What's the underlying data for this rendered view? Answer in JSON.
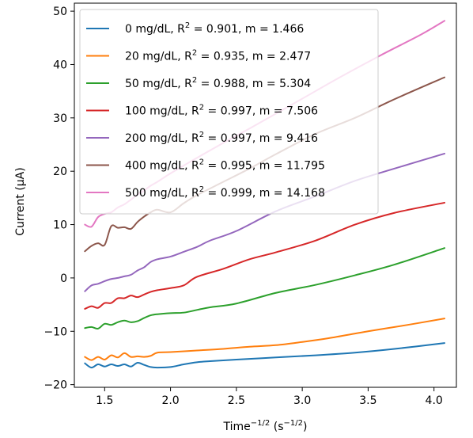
{
  "chart_data": {
    "type": "line",
    "xlabel": {
      "base": "Time",
      "base_sup": "−1/2",
      "unit_pre": " (s",
      "unit_sup": "−1/2",
      "unit_post": ")"
    },
    "ylabel": "Current (μA)",
    "xlim": [
      1.27,
      4.17
    ],
    "ylim": [
      -20.5,
      51.5
    ],
    "xticks": [
      1.5,
      2.0,
      2.5,
      3.0,
      3.5,
      4.0
    ],
    "xtick_labels": [
      "1.5",
      "2.0",
      "2.5",
      "3.0",
      "3.5",
      "4.0"
    ],
    "yticks": [
      -20,
      -10,
      0,
      10,
      20,
      30,
      40,
      50
    ],
    "ytick_labels": [
      "−20",
      "−10",
      "0",
      "10",
      "20",
      "30",
      "40",
      "50"
    ],
    "grid": false,
    "legend_position": "upper-left",
    "series": [
      {
        "name": "0 mg/dL",
        "legend_pre": "0 mg/dL, R",
        "legend_sup": "2",
        "legend_post": " = 0.901, m = 1.466",
        "color": "#1f77b4",
        "x": [
          1.35,
          1.4,
          1.45,
          1.5,
          1.55,
          1.6,
          1.65,
          1.7,
          1.75,
          1.8,
          1.85,
          1.9,
          2.0,
          2.1,
          2.2,
          2.3,
          2.5,
          2.8,
          3.1,
          3.4,
          3.7,
          4.08
        ],
        "y": [
          -16.0,
          -16.8,
          -16.2,
          -16.6,
          -16.2,
          -16.5,
          -16.2,
          -16.6,
          -15.9,
          -16.3,
          -16.7,
          -16.8,
          -16.7,
          -16.2,
          -15.8,
          -15.6,
          -15.3,
          -14.9,
          -14.5,
          -14.0,
          -13.3,
          -12.2
        ]
      },
      {
        "name": "20 mg/dL",
        "legend_pre": "20 mg/dL, R",
        "legend_sup": "2",
        "legend_post": " = 0.935, m = 2.477",
        "color": "#ff7f0e",
        "x": [
          1.35,
          1.4,
          1.45,
          1.5,
          1.55,
          1.6,
          1.65,
          1.7,
          1.75,
          1.8,
          1.85,
          1.9,
          2.0,
          2.2,
          2.4,
          2.6,
          2.8,
          3.0,
          3.2,
          3.5,
          3.8,
          4.08
        ],
        "y": [
          -14.8,
          -15.4,
          -14.8,
          -15.3,
          -14.5,
          -14.9,
          -14.1,
          -14.8,
          -14.7,
          -14.8,
          -14.6,
          -14.0,
          -13.9,
          -13.6,
          -13.3,
          -12.9,
          -12.6,
          -12.0,
          -11.3,
          -10.0,
          -8.8,
          -7.6
        ]
      },
      {
        "name": "50 mg/dL",
        "legend_pre": "50 mg/dL, R",
        "legend_sup": "2",
        "legend_post": " = 0.988, m = 5.304",
        "color": "#2ca02c",
        "x": [
          1.35,
          1.4,
          1.45,
          1.5,
          1.55,
          1.6,
          1.65,
          1.7,
          1.75,
          1.8,
          1.85,
          1.9,
          2.0,
          2.1,
          2.2,
          2.3,
          2.5,
          2.8,
          3.1,
          3.4,
          3.7,
          4.08
        ],
        "y": [
          -9.4,
          -9.2,
          -9.5,
          -8.6,
          -8.8,
          -8.3,
          -8.0,
          -8.3,
          -8.1,
          -7.5,
          -7.0,
          -6.8,
          -6.6,
          -6.5,
          -6.0,
          -5.5,
          -4.8,
          -2.8,
          -1.3,
          0.5,
          2.5,
          5.6
        ]
      },
      {
        "name": "100 mg/dL",
        "legend_pre": "100 mg/dL, R",
        "legend_sup": "2",
        "legend_post": " = 0.997, m = 7.506",
        "color": "#d62728",
        "x": [
          1.35,
          1.4,
          1.45,
          1.5,
          1.55,
          1.6,
          1.65,
          1.7,
          1.75,
          1.8,
          1.85,
          1.9,
          2.0,
          2.1,
          2.2,
          2.4,
          2.6,
          2.8,
          3.1,
          3.4,
          3.7,
          4.08
        ],
        "y": [
          -5.8,
          -5.3,
          -5.6,
          -4.7,
          -4.7,
          -3.8,
          -3.8,
          -3.3,
          -3.6,
          -3.1,
          -2.6,
          -2.3,
          -1.9,
          -1.4,
          0.2,
          1.7,
          3.5,
          4.8,
          7.0,
          10.0,
          12.2,
          14.1
        ]
      },
      {
        "name": "200 mg/dL",
        "legend_pre": "200 mg/dL, R",
        "legend_sup": "2",
        "legend_post": " = 0.997, m = 9.416",
        "color": "#9467bd",
        "x": [
          1.35,
          1.4,
          1.45,
          1.5,
          1.55,
          1.6,
          1.65,
          1.7,
          1.75,
          1.8,
          1.85,
          1.9,
          2.0,
          2.1,
          2.2,
          2.3,
          2.5,
          2.8,
          3.1,
          3.4,
          3.7,
          4.08
        ],
        "y": [
          -2.5,
          -1.4,
          -1.1,
          -0.6,
          -0.2,
          0.0,
          0.3,
          0.6,
          1.4,
          2.0,
          3.0,
          3.5,
          4.0,
          4.9,
          5.8,
          7.0,
          8.8,
          12.5,
          15.3,
          18.2,
          20.5,
          23.3
        ]
      },
      {
        "name": "400 mg/dL",
        "legend_pre": "400 mg/dL, R",
        "legend_sup": "2",
        "legend_post": " = 0.995, m = 11.795",
        "color": "#8c564b",
        "x": [
          1.35,
          1.4,
          1.45,
          1.5,
          1.55,
          1.6,
          1.65,
          1.7,
          1.75,
          1.8,
          1.85,
          1.9,
          2.0,
          2.1,
          2.2,
          2.4,
          2.6,
          2.8,
          3.1,
          3.4,
          3.7,
          4.08
        ],
        "y": [
          5.0,
          6.0,
          6.5,
          6.2,
          9.7,
          9.4,
          9.5,
          9.2,
          10.5,
          11.5,
          12.3,
          12.8,
          12.3,
          14.0,
          15.5,
          18.0,
          20.5,
          23.2,
          27.0,
          30.0,
          33.5,
          37.6
        ]
      },
      {
        "name": "500 mg/dL",
        "legend_pre": "500 mg/dL, R",
        "legend_sup": "2",
        "legend_post": " = 0.999, m = 14.168",
        "color": "#e377c2",
        "x": [
          1.35,
          1.4,
          1.45,
          1.5,
          1.55,
          1.6,
          1.65,
          1.7,
          1.75,
          1.8,
          1.85,
          1.9,
          2.0,
          2.2,
          2.4,
          2.6,
          2.8,
          3.0,
          3.3,
          3.6,
          3.9,
          4.08
        ],
        "y": [
          10.0,
          9.6,
          11.4,
          12.0,
          12.3,
          13.2,
          13.8,
          14.7,
          15.6,
          16.4,
          17.3,
          18.0,
          19.6,
          22.5,
          25.3,
          28.0,
          30.8,
          33.6,
          37.8,
          41.8,
          45.6,
          48.2
        ]
      }
    ]
  }
}
